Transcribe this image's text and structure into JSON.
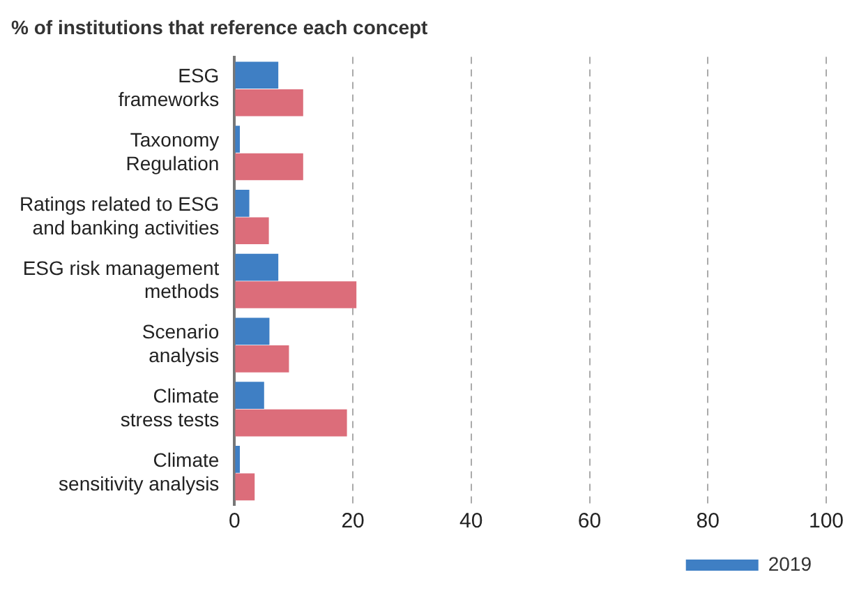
{
  "chart_data": {
    "type": "bar",
    "orientation": "horizontal",
    "title": "% of institutions that reference each concept",
    "categories": [
      "ESG\nframeworks",
      "Taxonomy\nRegulation",
      "Ratings related to ESG\nand banking activities",
      "ESG risk management\nmethods",
      "Scenario\nanalysis",
      "Climate\nstress tests",
      "Climate\nsensitivity analysis"
    ],
    "series": [
      {
        "name": "2019",
        "color": "#3f7fc4",
        "values": [
          7.4,
          0.9,
          2.5,
          7.4,
          5.9,
          5.0,
          0.9
        ]
      },
      {
        "color": "#dc6d7a",
        "values": [
          11.6,
          11.6,
          5.8,
          20.6,
          9.2,
          19.0,
          3.4
        ]
      }
    ],
    "xlim": [
      0,
      100
    ],
    "xticks": [
      0,
      20,
      40,
      60,
      80,
      100
    ],
    "grid": "x",
    "legend": "bottom right"
  }
}
